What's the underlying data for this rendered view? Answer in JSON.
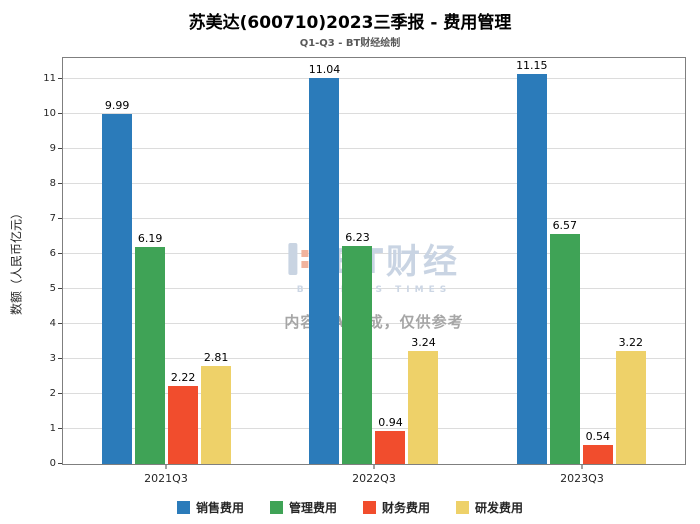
{
  "header": {
    "title": "苏美达(600710)2023三季报 - 费用管理",
    "subtitle": "Q1-Q3 - BT财经绘制"
  },
  "chart_data": {
    "type": "bar",
    "title": "苏美达(600710)2023三季报 - 费用管理",
    "subtitle": "Q1-Q3 - BT财经绘制",
    "categories": [
      "2021Q3",
      "2022Q3",
      "2023Q3"
    ],
    "series": [
      {
        "name": "销售费用",
        "color": "#2b7bba",
        "values": [
          9.99,
          11.04,
          11.15
        ]
      },
      {
        "name": "管理费用",
        "color": "#3fa356",
        "values": [
          6.19,
          6.23,
          6.57
        ]
      },
      {
        "name": "财务费用",
        "color": "#f14d2d",
        "values": [
          2.22,
          0.94,
          0.54
        ]
      },
      {
        "name": "研发费用",
        "color": "#eed169",
        "values": [
          2.81,
          3.24,
          3.22
        ]
      }
    ],
    "xlabel": "",
    "ylabel": "数额（人民币亿元）",
    "ylim": [
      0,
      11.6
    ],
    "yticks": [
      0,
      1,
      2,
      3,
      4,
      5,
      6,
      7,
      8,
      9,
      10,
      11
    ],
    "grid": true,
    "legend_position": "bottom",
    "value_labels": true
  },
  "watermark": {
    "logo_text": "BT财经",
    "logo_sub": "BUSINESS TIMES",
    "disclaimer": "内容由AI生成，仅供参考"
  }
}
